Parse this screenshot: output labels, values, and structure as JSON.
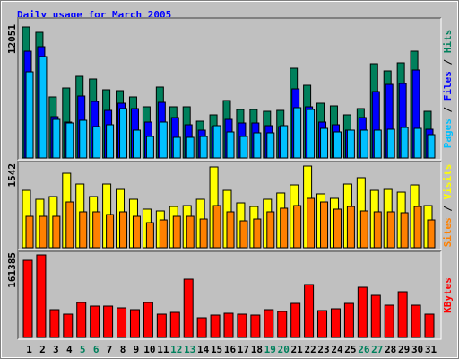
{
  "chart_data": [
    {
      "type": "bar",
      "title": "Daily usage for March 2005",
      "ylim": [
        0,
        12051
      ],
      "yticks": [
        12051
      ],
      "legend_separator": " / ",
      "series": [
        {
          "name": "Hits",
          "color": "#00805c",
          "values": [
            12051,
            11556,
            5613,
            6438,
            7511,
            7264,
            6273,
            6190,
            5613,
            4705,
            6521,
            4705,
            4705,
            3384,
            3962,
            5283,
            4457,
            4457,
            4292,
            4375,
            8254,
            6686,
            5035,
            4787,
            3962,
            4540,
            8667,
            8007,
            8750,
            9822,
            4292
          ]
        },
        {
          "name": "Files",
          "color": "#0000ff",
          "values": [
            9822,
            10235,
            3797,
            3302,
            5696,
            5200,
            4375,
            5035,
            4540,
            3302,
            5118,
            3714,
            3054,
            2559,
            2889,
            3549,
            3219,
            3219,
            2972,
            2889,
            6356,
            4705,
            3302,
            3054,
            2559,
            3714,
            6108,
            6768,
            6851,
            8089,
            2641
          ]
        },
        {
          "name": "Pages",
          "color": "#00c0ff",
          "values": [
            7924,
            9327,
            3549,
            3219,
            3467,
            2889,
            3054,
            4540,
            2559,
            1981,
            3302,
            1899,
            1899,
            1981,
            2972,
            2394,
            1981,
            2311,
            2311,
            2972,
            4622,
            4457,
            2724,
            2394,
            2559,
            2559,
            2559,
            2641,
            2806,
            2724,
            2146
          ]
        }
      ]
    },
    {
      "type": "bar",
      "ylim": [
        0,
        1542
      ],
      "yticks": [
        1542
      ],
      "legend_separator": " / ",
      "series": [
        {
          "name": "Visits",
          "color": "#ffff00",
          "values": [
            1084,
            915,
            966,
            1406,
            1203,
            966,
            1203,
            1101,
            915,
            729,
            695,
            779,
            796,
            915,
            1525,
            1084,
            847,
            779,
            915,
            1034,
            1186,
            1542,
            1017,
            932,
            1203,
            1322,
            1084,
            1101,
            1050,
            1186,
            796
          ]
        },
        {
          "name": "Sites",
          "color": "#ff8000",
          "values": [
            593,
            593,
            593,
            864,
            678,
            678,
            627,
            678,
            593,
            474,
            525,
            593,
            593,
            542,
            796,
            678,
            508,
            542,
            678,
            746,
            796,
            932,
            864,
            729,
            779,
            695,
            678,
            678,
            661,
            779,
            525
          ]
        }
      ]
    },
    {
      "type": "bar",
      "ylim": [
        0,
        161385
      ],
      "yticks": [
        161385
      ],
      "categories": [
        "1",
        "2",
        "3",
        "4",
        "5",
        "6",
        "7",
        "8",
        "9",
        "10",
        "11",
        "12",
        "13",
        "14",
        "15",
        "16",
        "17",
        "18",
        "19",
        "20",
        "21",
        "22",
        "23",
        "24",
        "25",
        "26",
        "27",
        "28",
        "29",
        "30",
        "31"
      ],
      "x_label_colors": [
        "#000000",
        "#000000",
        "#000000",
        "#000000",
        "#00805c",
        "#00805c",
        "#000000",
        "#000000",
        "#000000",
        "#000000",
        "#000000",
        "#00805c",
        "#00805c",
        "#000000",
        "#000000",
        "#000000",
        "#000000",
        "#000000",
        "#00805c",
        "#00805c",
        "#000000",
        "#000000",
        "#000000",
        "#000000",
        "#000000",
        "#00805c",
        "#00805c",
        "#000000",
        "#000000",
        "#000000",
        "#000000"
      ],
      "series": [
        {
          "name": "KBytes",
          "color": "#ff0000",
          "values": [
            150843,
            161385,
            54375,
            45604,
            68406,
            61390,
            61390,
            57882,
            54375,
            68406,
            45604,
            49112,
            114013,
            38588,
            43851,
            47358,
            45604,
            43851,
            54375,
            50866,
            66652,
            103489,
            52621,
            56129,
            66652,
            98227,
            82439,
            63145,
            89455,
            63145,
            45604
          ]
        }
      ]
    }
  ]
}
